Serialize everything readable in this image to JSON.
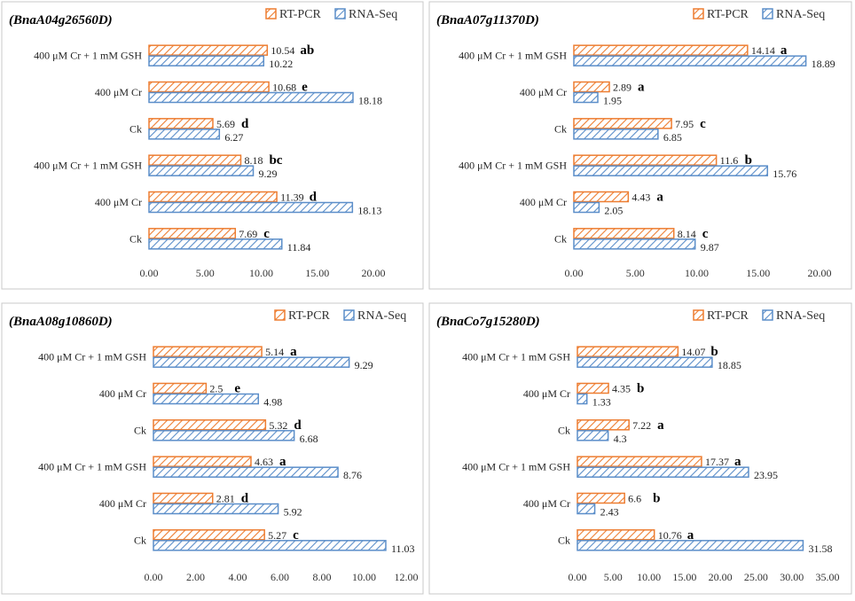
{
  "legend": {
    "rt_label": "RT-PCR",
    "rna_label": "RNA-Seq"
  },
  "colors": {
    "rt": "#ed7d31",
    "rna": "#5b8ec9"
  },
  "chart_data": [
    {
      "type": "bar",
      "orientation": "horizontal",
      "title": "(BnaA04g26560D)",
      "categories": [
        "Ck",
        "400 μM Cr",
        "400 μM Cr + 1 mM GSH",
        "Ck",
        "400 μM Cr",
        "400 μM Cr + 1 mM GSH"
      ],
      "series": [
        {
          "name": "RT-PCR",
          "values": [
            7.69,
            11.39,
            8.18,
            5.69,
            10.68,
            10.54
          ]
        },
        {
          "name": "RNA-Seq",
          "values": [
            11.84,
            18.13,
            9.29,
            6.27,
            18.18,
            10.22
          ]
        }
      ],
      "value_labels_rt": [
        "7.69",
        "11.39",
        "8.18",
        "5.69",
        "10.68",
        "10.54"
      ],
      "value_labels_rna": [
        "11.84",
        "18.13",
        "9.29",
        "6.27",
        "18.18",
        "10.22"
      ],
      "significance": [
        "c",
        "d",
        "bc",
        "d",
        "e",
        "ab"
      ],
      "xlim": [
        0,
        20
      ],
      "ticks": [
        "0.00",
        "5.00",
        "10.00",
        "15.00",
        "20.00"
      ]
    },
    {
      "type": "bar",
      "orientation": "horizontal",
      "title": "(BnaA07g11370D)",
      "categories": [
        "Ck",
        "400 μM Cr",
        "400 μM Cr + 1 mM GSH",
        "Ck",
        "400 μM Cr",
        "400 μM Cr + 1 mM GSH"
      ],
      "series": [
        {
          "name": "RT-PCR",
          "values": [
            8.14,
            4.43,
            11.6,
            7.95,
            2.89,
            14.14
          ]
        },
        {
          "name": "RNA-Seq",
          "values": [
            9.87,
            2.05,
            15.76,
            6.85,
            1.95,
            18.89
          ]
        }
      ],
      "value_labels_rt": [
        "8.14",
        "4.43",
        "11.6",
        "7.95",
        "2.89",
        "14.14"
      ],
      "value_labels_rna": [
        "9.87",
        "2.05",
        "15.76",
        "6.85",
        "1.95",
        "18.89"
      ],
      "significance": [
        "c",
        "a",
        "b",
        "c",
        "a",
        "a"
      ],
      "xlim": [
        0,
        20
      ],
      "ticks": [
        "0.00",
        "5.00",
        "10.00",
        "15.00",
        "20.00"
      ]
    },
    {
      "type": "bar",
      "orientation": "horizontal",
      "title": "(BnaA08g10860D)",
      "categories": [
        "Ck",
        "400 μM Cr",
        "400 μM Cr + 1 mM GSH",
        "Ck",
        "400 μM Cr",
        "400 μM Cr + 1 mM GSH"
      ],
      "series": [
        {
          "name": "RT-PCR",
          "values": [
            5.27,
            2.81,
            4.63,
            5.32,
            2.5,
            5.14
          ]
        },
        {
          "name": "RNA-Seq",
          "values": [
            11.03,
            5.92,
            8.76,
            6.68,
            4.98,
            9.29
          ]
        }
      ],
      "value_labels_rt": [
        "5.27",
        "2.81",
        "4.63",
        "5.32",
        "2.5",
        "5.14"
      ],
      "value_labels_rna": [
        "11.03",
        "5.92",
        "8.76",
        "6.68",
        "4.98",
        "9.29"
      ],
      "significance": [
        "c",
        "d",
        "a",
        "d",
        "e",
        "a"
      ],
      "xlim": [
        0,
        12
      ],
      "ticks": [
        "0.00",
        "2.00",
        "4.00",
        "6.00",
        "8.00",
        "10.00",
        "12.00"
      ]
    },
    {
      "type": "bar",
      "orientation": "horizontal",
      "title": "(BnaCo7g15280D)",
      "categories": [
        "Ck",
        "400 μM Cr",
        "400 μM Cr + 1 mM GSH",
        "Ck",
        "400 μM Cr",
        "400 μM Cr + 1 mM GSH"
      ],
      "series": [
        {
          "name": "RT-PCR",
          "values": [
            10.76,
            6.6,
            17.37,
            7.22,
            4.35,
            14.07
          ]
        },
        {
          "name": "RNA-Seq",
          "values": [
            31.58,
            2.43,
            23.95,
            4.3,
            1.33,
            18.85
          ]
        }
      ],
      "value_labels_rt": [
        "10.76",
        "6.6",
        "17.37",
        "7.22",
        "4.35",
        "14.07"
      ],
      "value_labels_rna": [
        "31.58",
        "2.43",
        "23.95",
        "4.3",
        "1.33",
        "18.85"
      ],
      "significance": [
        "a",
        "b",
        "a",
        "a",
        "b",
        "b"
      ],
      "xlim": [
        0,
        35
      ],
      "ticks": [
        "0.00",
        "5.00",
        "10.00",
        "15.00",
        "20.00",
        "25.00",
        "30.00",
        "35.00"
      ]
    }
  ]
}
